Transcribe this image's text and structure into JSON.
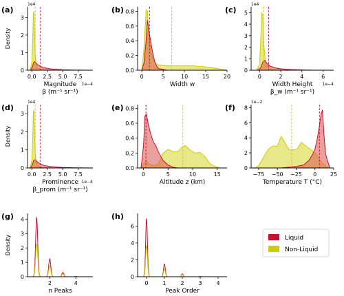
{
  "colors": {
    "liquid": "#c8102e",
    "liquid_fill": "#d9534f",
    "nonliquid": "#cccc00",
    "nonliquid_fill": "#d6d62a",
    "axis": "#000000"
  },
  "legend": {
    "entries": [
      {
        "label": "Liquid",
        "color": "#c8102e"
      },
      {
        "label": "Non-Liquid",
        "color": "#cccc00"
      }
    ]
  },
  "chart_data": [
    {
      "panel": "(a)",
      "type": "area",
      "xlabel_lines": [
        "Magnitude",
        "β (m⁻¹ sr⁻¹)"
      ],
      "ylabel": "Density",
      "x_multiplier": "1e−4",
      "y_multiplier": "1e4",
      "xlim": [
        -0.7,
        9.9
      ],
      "ylim": [
        0,
        3.6
      ],
      "xticks": [
        0.0,
        2.5,
        5.0,
        7.5
      ],
      "xtick_labels": [
        "0.0",
        "2.5",
        "5.0",
        "7.5"
      ],
      "yticks": [
        0,
        1,
        2,
        3
      ],
      "ytick_labels": [
        "0",
        "1",
        "2",
        "3"
      ],
      "vlines": [
        {
          "x": 0.55,
          "series": "Non-Liquid"
        },
        {
          "x": 1.4,
          "series": "Liquid"
        }
      ],
      "series": [
        {
          "name": "Non-Liquid",
          "x": [
            -0.3,
            0.0,
            0.15,
            0.25,
            0.35,
            0.45,
            0.55,
            0.7,
            0.9,
            1.1,
            1.5,
            2.0,
            3.0,
            4.0
          ],
          "y": [
            0.0,
            0.4,
            1.8,
            3.2,
            3.35,
            2.0,
            0.9,
            0.35,
            0.15,
            0.08,
            0.04,
            0.02,
            0.01,
            0.0
          ]
        },
        {
          "name": "Liquid",
          "x": [
            -0.2,
            0.1,
            0.3,
            0.5,
            0.7,
            1.0,
            1.5,
            2.0,
            3.0,
            4.0,
            5.0,
            7.0,
            9.9
          ],
          "y": [
            0.0,
            0.2,
            0.45,
            0.48,
            0.4,
            0.3,
            0.2,
            0.14,
            0.08,
            0.05,
            0.03,
            0.01,
            0.0
          ]
        }
      ]
    },
    {
      "panel": "(b)",
      "type": "area",
      "xlabel_lines": [
        "Width w"
      ],
      "ylabel": "",
      "x_multiplier": "",
      "y_multiplier": "",
      "xlim": [
        -1.0,
        20.0
      ],
      "ylim": [
        0,
        0.86
      ],
      "xticks": [
        0,
        5,
        10,
        15,
        20
      ],
      "xtick_labels": [
        "0",
        "5",
        "10",
        "15",
        "20"
      ],
      "yticks": [
        0.0,
        0.2,
        0.4,
        0.6,
        0.8
      ],
      "ytick_labels": [
        "0.0",
        "0.2",
        "0.4",
        "0.6",
        "0.8"
      ],
      "vlines": [
        {
          "x": 1.8,
          "series": "Liquid"
        },
        {
          "x": 7.0,
          "series": "Non-Liquid"
        }
      ],
      "series": [
        {
          "name": "Non-Liquid",
          "x": [
            0.0,
            0.5,
            1.0,
            1.3,
            1.6,
            2.0,
            2.5,
            3.0,
            4.0,
            6.0,
            8.0,
            10.0,
            12.0,
            14.0,
            16.0,
            18.0,
            20.0
          ],
          "y": [
            0.0,
            0.3,
            0.82,
            0.8,
            0.55,
            0.3,
            0.17,
            0.1,
            0.07,
            0.06,
            0.06,
            0.06,
            0.06,
            0.05,
            0.04,
            0.02,
            0.0
          ]
        },
        {
          "name": "Liquid",
          "x": [
            0.0,
            0.5,
            1.0,
            1.3,
            1.6,
            2.0,
            2.5,
            3.0,
            3.5,
            4.0,
            5.0,
            6.0,
            8.0,
            10.0
          ],
          "y": [
            0.0,
            0.1,
            0.4,
            0.68,
            0.55,
            0.42,
            0.25,
            0.12,
            0.05,
            0.02,
            0.01,
            0.0,
            0.0,
            0.0
          ]
        }
      ]
    },
    {
      "panel": "(c)",
      "type": "area",
      "xlabel_lines": [
        "Width Height",
        "β_w (m⁻¹ sr⁻¹)"
      ],
      "ylabel": "",
      "x_multiplier": "1e−4",
      "y_multiplier": "1e4",
      "xlim": [
        -0.8,
        7.0
      ],
      "ylim": [
        0,
        5.5
      ],
      "xticks": [
        0,
        2,
        4,
        6
      ],
      "xtick_labels": [
        "0",
        "2",
        "4",
        "6"
      ],
      "yticks": [
        0,
        1,
        2,
        3,
        4,
        5
      ],
      "ytick_labels": [
        "0",
        "1",
        "2",
        "3",
        "4",
        "5"
      ],
      "vlines": [
        {
          "x": 0.35,
          "series": "Non-Liquid"
        },
        {
          "x": 0.85,
          "series": "Liquid"
        }
      ],
      "series": [
        {
          "name": "Non-Liquid",
          "x": [
            -0.3,
            0.0,
            0.1,
            0.2,
            0.3,
            0.4,
            0.55,
            0.7,
            1.0,
            1.5,
            2.0,
            3.0
          ],
          "y": [
            0.0,
            0.5,
            2.5,
            5.0,
            4.8,
            2.2,
            0.8,
            0.35,
            0.12,
            0.05,
            0.02,
            0.0
          ]
        },
        {
          "name": "Liquid",
          "x": [
            -0.2,
            0.1,
            0.3,
            0.5,
            0.7,
            1.0,
            1.5,
            2.0,
            3.0,
            4.0,
            5.0,
            7.0
          ],
          "y": [
            0.0,
            0.2,
            0.7,
            0.85,
            0.6,
            0.35,
            0.2,
            0.12,
            0.06,
            0.03,
            0.01,
            0.0
          ]
        }
      ]
    },
    {
      "panel": "(d)",
      "type": "area",
      "xlabel_lines": [
        "Prominence",
        "β_prom (m⁻¹ sr⁻¹)"
      ],
      "ylabel": "Density",
      "x_multiplier": "1e−4",
      "y_multiplier": "1e4",
      "xlim": [
        -0.7,
        9.9
      ],
      "ylim": [
        0,
        3.5
      ],
      "xticks": [
        0.0,
        2.5,
        5.0,
        7.5
      ],
      "xtick_labels": [
        "0.0",
        "2.5",
        "5.0",
        "7.5"
      ],
      "yticks": [
        0,
        1,
        2,
        3
      ],
      "ytick_labels": [
        "0",
        "1",
        "2",
        "3"
      ],
      "vlines": [
        {
          "x": 0.55,
          "series": "Non-Liquid"
        },
        {
          "x": 1.4,
          "series": "Liquid"
        }
      ],
      "series": [
        {
          "name": "Non-Liquid",
          "x": [
            -0.3,
            0.0,
            0.15,
            0.25,
            0.35,
            0.45,
            0.55,
            0.7,
            0.9,
            1.1,
            1.5,
            2.0,
            3.0,
            4.0
          ],
          "y": [
            0.0,
            0.4,
            1.7,
            3.1,
            3.2,
            1.9,
            0.85,
            0.35,
            0.15,
            0.08,
            0.04,
            0.02,
            0.01,
            0.0
          ]
        },
        {
          "name": "Liquid",
          "x": [
            -0.2,
            0.1,
            0.3,
            0.5,
            0.7,
            1.0,
            1.5,
            2.0,
            3.0,
            4.0,
            5.0,
            7.0,
            9.9
          ],
          "y": [
            0.0,
            0.2,
            0.42,
            0.46,
            0.4,
            0.3,
            0.2,
            0.14,
            0.08,
            0.05,
            0.03,
            0.01,
            0.0
          ]
        }
      ]
    },
    {
      "panel": "(e)",
      "type": "area",
      "xlabel_lines": [
        "Altitude z (km)"
      ],
      "ylabel": "",
      "x_multiplier": "",
      "y_multiplier": "",
      "xlim": [
        -1.2,
        17.0
      ],
      "ylim": [
        0,
        0.85
      ],
      "xticks": [
        0,
        5,
        10,
        15
      ],
      "xtick_labels": [
        "0",
        "5",
        "10",
        "15"
      ],
      "yticks": [
        0.0,
        0.2,
        0.4,
        0.6,
        0.8
      ],
      "ytick_labels": [
        "0.0",
        "0.2",
        "0.4",
        "0.6",
        "0.8"
      ],
      "vlines": [
        {
          "x": 0.5,
          "series": "Liquid"
        },
        {
          "x": 8.0,
          "series": "Non-Liquid"
        }
      ],
      "series": [
        {
          "name": "Non-Liquid",
          "x": [
            -0.5,
            0.0,
            0.5,
            1.0,
            2.0,
            3.0,
            4.0,
            5.0,
            6.0,
            7.0,
            7.7,
            8.5,
            9.5,
            10.5,
            11.5,
            12.5,
            13.5,
            14.5,
            15.5
          ],
          "y": [
            0.0,
            0.05,
            0.1,
            0.06,
            0.03,
            0.05,
            0.2,
            0.25,
            0.22,
            0.22,
            0.27,
            0.3,
            0.24,
            0.2,
            0.21,
            0.15,
            0.06,
            0.02,
            0.0
          ]
        },
        {
          "name": "Liquid",
          "x": [
            -0.5,
            0.0,
            0.3,
            0.6,
            1.0,
            1.5,
            2.0,
            2.5,
            3.0,
            4.0,
            5.0,
            6.0,
            7.0
          ],
          "y": [
            0.0,
            0.3,
            0.7,
            0.72,
            0.58,
            0.45,
            0.35,
            0.3,
            0.22,
            0.1,
            0.04,
            0.01,
            0.0
          ]
        }
      ]
    },
    {
      "panel": "(f)",
      "type": "area",
      "xlabel_lines": [
        "Temperature T (°C)"
      ],
      "ylabel": "",
      "x_multiplier": "",
      "y_multiplier": "1e−2",
      "xlim": [
        -85,
        25
      ],
      "ylim": [
        0,
        8.4
      ],
      "xticks": [
        -75,
        -50,
        -25,
        0,
        25
      ],
      "xtick_labels": [
        "−75",
        "−50",
        "−25",
        "0",
        "25"
      ],
      "yticks": [
        0,
        2,
        4,
        6,
        8
      ],
      "ytick_labels": [
        "0",
        "2",
        "4",
        "6",
        "8"
      ],
      "vlines": [
        {
          "x": -31,
          "series": "Non-Liquid"
        },
        {
          "x": 6,
          "series": "Liquid"
        }
      ],
      "series": [
        {
          "name": "Non-Liquid",
          "x": [
            -80,
            -75,
            -68,
            -62,
            -56,
            -50,
            -45,
            -40,
            -35,
            -30,
            -24,
            -18,
            -12,
            -6,
            0,
            5,
            10,
            15,
            20
          ],
          "y": [
            0.0,
            0.3,
            1.5,
            2.5,
            2.9,
            2.9,
            4.2,
            3.4,
            2.5,
            2.4,
            2.5,
            3.4,
            2.9,
            2.5,
            2.0,
            1.3,
            0.6,
            0.2,
            0.0
          ]
        },
        {
          "name": "Liquid",
          "x": [
            -45,
            -35,
            -25,
            -15,
            -8,
            -3,
            0,
            3,
            6,
            8,
            10,
            12,
            14,
            16,
            18,
            20
          ],
          "y": [
            0.0,
            0.1,
            0.2,
            0.4,
            1.0,
            1.8,
            2.5,
            3.8,
            5.6,
            7.0,
            7.7,
            4.5,
            2.0,
            1.2,
            0.6,
            0.0
          ]
        }
      ]
    },
    {
      "panel": "(g)",
      "type": "line",
      "xlabel_lines": [
        "n Peaks"
      ],
      "ylabel": "Density",
      "x_multiplier": "",
      "y_multiplier": "",
      "xlim": [
        0.3,
        5.3
      ],
      "ylim": [
        0,
        4.4
      ],
      "xticks": [
        2,
        4
      ],
      "xtick_labels": [
        "2",
        "4"
      ],
      "yticks": [
        0,
        1,
        2,
        3,
        4
      ],
      "ytick_labels": [
        "0",
        "1",
        "2",
        "3",
        "4"
      ],
      "vlines": [],
      "peak_width": 0.08,
      "series": [
        {
          "name": "Liquid",
          "peaks": [
            [
              1,
              4.1
            ],
            [
              2,
              1.25
            ],
            [
              3,
              0.3
            ],
            [
              4,
              0.03
            ]
          ]
        },
        {
          "name": "Non-Liquid",
          "peaks": [
            [
              1,
              2.3
            ],
            [
              2,
              0.75
            ],
            [
              3,
              0.2
            ],
            [
              4,
              0.02
            ]
          ]
        }
      ]
    },
    {
      "panel": "(h)",
      "type": "line",
      "xlabel_lines": [
        "Peak Order"
      ],
      "ylabel": "",
      "x_multiplier": "",
      "y_multiplier": "",
      "xlim": [
        -0.5,
        4.5
      ],
      "ylim": [
        0,
        7.5
      ],
      "xticks": [
        0,
        1,
        2,
        3,
        4
      ],
      "xtick_labels": [
        "0",
        "1",
        "2",
        "3",
        "4"
      ],
      "yticks": [
        0,
        2,
        4,
        6
      ],
      "ytick_labels": [
        "0",
        "2",
        "4",
        "6"
      ],
      "vlines": [],
      "peak_width": 0.05,
      "series": [
        {
          "name": "Liquid",
          "peaks": [
            [
              0,
              6.9
            ],
            [
              1,
              1.5
            ],
            [
              2,
              0.35
            ],
            [
              3,
              0.05
            ]
          ]
        },
        {
          "name": "Non-Liquid",
          "peaks": [
            [
              0,
              3.7
            ],
            [
              1,
              0.9
            ],
            [
              2,
              0.25
            ],
            [
              3,
              0.03
            ]
          ]
        }
      ]
    }
  ]
}
